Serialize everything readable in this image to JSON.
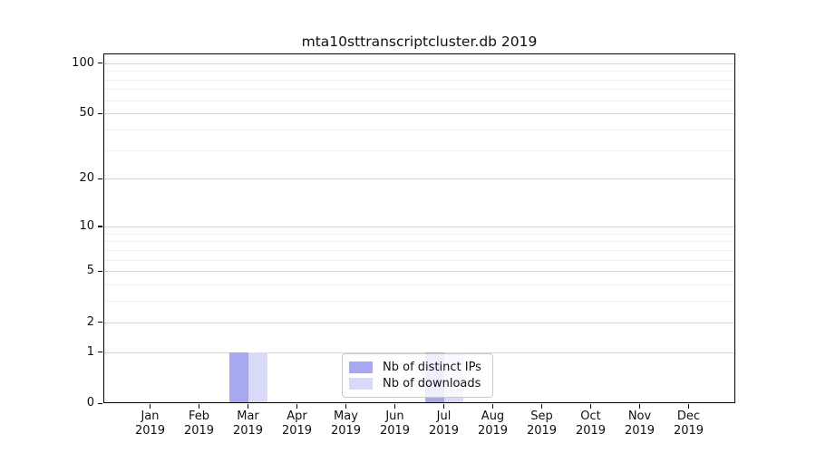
{
  "chart_data": {
    "type": "bar",
    "title": "mta10sttranscriptcluster.db 2019",
    "categories": [
      "Jan 2019",
      "Feb 2019",
      "Mar 2019",
      "Apr 2019",
      "May 2019",
      "Jun 2019",
      "Jul 2019",
      "Aug 2019",
      "Sep 2019",
      "Oct 2019",
      "Nov 2019",
      "Dec 2019"
    ],
    "series": [
      {
        "name": "Nb of distinct IPs",
        "color": "#a8a8f2",
        "values": [
          0,
          0,
          1,
          0,
          0,
          0,
          1,
          0,
          0,
          0,
          0,
          0
        ]
      },
      {
        "name": "Nb of downloads",
        "color": "#d9d9f9",
        "values": [
          0,
          0,
          1,
          0,
          0,
          0,
          1,
          0,
          0,
          0,
          0,
          0
        ]
      }
    ],
    "y_scale": "log1p",
    "y_ticks": [
      0,
      1,
      2,
      5,
      10,
      20,
      50,
      100
    ],
    "y_minor_gridlines": [
      3,
      4,
      6,
      7,
      8,
      9,
      30,
      40,
      60,
      70,
      80,
      90
    ],
    "ylim": [
      0,
      114
    ],
    "xlabel": "",
    "ylabel": "",
    "grid": "horizontal",
    "legend_position": "inside-bottom-center",
    "colors": {
      "grid_major": "#d7d7d7",
      "grid_minor": "#f0f0f0",
      "axis": "#000000"
    }
  }
}
